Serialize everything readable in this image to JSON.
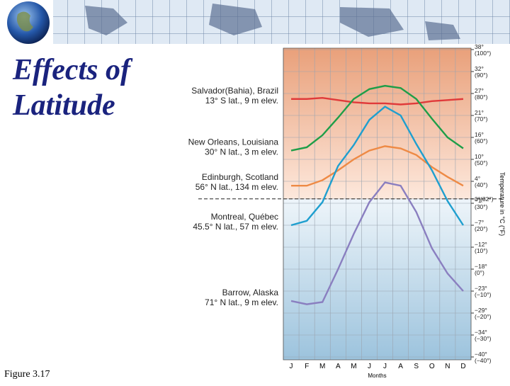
{
  "slide": {
    "title_lines": [
      "Effects of",
      "Latitude"
    ],
    "caption": "Figure 3.17"
  },
  "chart_data": {
    "type": "line",
    "x_label": "Months",
    "y_label": "Temperature in °C (°F)",
    "categories": [
      "J",
      "F",
      "M",
      "A",
      "M",
      "J",
      "J",
      "A",
      "S",
      "O",
      "N",
      "D"
    ],
    "series": [
      {
        "name": "Salvador(Bahia), Brazil",
        "subtitle": "13° S lat., 9 m elev.",
        "color": "#e03a3a",
        "values": [
          77.5,
          77.5,
          78,
          77,
          76,
          75.5,
          75.5,
          75,
          75.5,
          76.5,
          77,
          77.5
        ]
      },
      {
        "name": "New Orleans, Louisiana",
        "subtitle": "30° N lat., 3 m elev.",
        "color": "#1e9e48",
        "values": [
          54,
          55.5,
          61,
          69,
          77.5,
          82,
          83.5,
          82.5,
          77.5,
          68.5,
          60,
          55
        ]
      },
      {
        "name": "Edinburgh, Scotland",
        "subtitle": "56° N lat., 134 m elev.",
        "color": "#ee8a45",
        "values": [
          38,
          38,
          40.5,
          45,
          50,
          54,
          56,
          55,
          52,
          46.5,
          42,
          38
        ]
      },
      {
        "name": "Montreal, Québec",
        "subtitle": "45.5° N lat., 57 m elev.",
        "color": "#1f9fcf",
        "values": [
          20,
          22,
          30.5,
          47,
          56.5,
          68,
          74,
          70,
          57,
          45,
          31,
          20
        ]
      },
      {
        "name": "Barrow, Alaska",
        "subtitle": "71° N lat., 9 m elev.",
        "color": "#8a7fc0",
        "values": [
          -14.5,
          -16,
          -15,
          0,
          16,
          30.5,
          39.5,
          38,
          26,
          9.5,
          -2,
          -10
        ]
      }
    ],
    "ylim": [
      -40,
      100
    ],
    "yticks": [
      {
        "value": 100,
        "label": "38° (100°)"
      },
      {
        "value": 90,
        "label": "32° (90°)"
      },
      {
        "value": 80,
        "label": "27° (80°)"
      },
      {
        "value": 70,
        "label": "21° (70°)"
      },
      {
        "value": 60,
        "label": "16° (60°)"
      },
      {
        "value": 50,
        "label": "10° (50°)"
      },
      {
        "value": 40,
        "label": "4° (40°)"
      },
      {
        "value": 32,
        "label": "0°(32°)"
      },
      {
        "value": 30,
        "label": "−1° (30°)"
      },
      {
        "value": 20,
        "label": "−7° (20°)"
      },
      {
        "value": 10,
        "label": "−12° (10°)"
      },
      {
        "value": 0,
        "label": "−18° (0°)"
      },
      {
        "value": -10,
        "label": "−23° (−10°)"
      },
      {
        "value": -20,
        "label": "−29° (−20°)"
      },
      {
        "value": -30,
        "label": "−34° (−30°)"
      },
      {
        "value": -40,
        "label": "−40° (−40°)"
      }
    ],
    "freezing": 32,
    "grid": true
  }
}
